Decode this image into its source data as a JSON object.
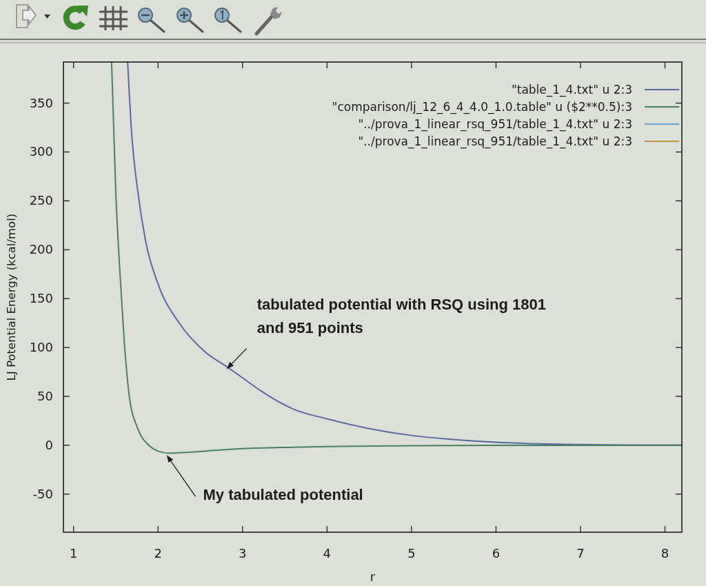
{
  "chart_data": {
    "type": "line",
    "xlabel": "r",
    "ylabel": "LJ Potential Energy (kcal/mol)",
    "xlim": [
      0.88,
      8.2
    ],
    "ylim": [
      -89,
      392
    ],
    "xticks": [
      1,
      2,
      3,
      4,
      5,
      6,
      7,
      8
    ],
    "yticks": [
      -50,
      0,
      50,
      100,
      150,
      200,
      250,
      300,
      350
    ],
    "legend": "top right",
    "series": [
      {
        "name": "\"table_1_4.txt\" u 2:3",
        "color": "#5868a0",
        "x": [
          1.64,
          1.69,
          1.76,
          1.85,
          2.0,
          2.25,
          2.55,
          2.82,
          3.0,
          3.21,
          3.6,
          4.0,
          4.5,
          5.0,
          5.4,
          6.0,
          6.5,
          7.0,
          7.5,
          8.2
        ],
        "values": [
          392,
          316,
          260,
          210,
          165,
          125,
          96,
          80,
          69,
          56,
          37,
          27,
          17,
          10,
          6.5,
          3,
          1.5,
          0.7,
          0.3,
          0
        ]
      },
      {
        "name": "\"comparison/lj_12_6_4_4.0_1.0.table\" u ($2**0.5):3",
        "color": "#4a8060",
        "x": [
          1.45,
          1.5,
          1.55,
          1.6,
          1.66,
          1.76,
          1.89,
          2.0,
          2.12,
          2.4,
          2.7,
          3.0,
          3.6,
          4.0,
          5.0,
          6.0,
          7.0,
          8.2
        ],
        "values": [
          392,
          258,
          175,
          106,
          50,
          17,
          0,
          -6,
          -8,
          -7,
          -5,
          -3.5,
          -2,
          -1.3,
          -0.5,
          -0.2,
          -0.1,
          0
        ]
      },
      {
        "name": "\"../prova_1_linear_rsq_951/table_1_4.txt\" u 2:3",
        "color": "#6aa8cc"
      },
      {
        "name": "\"../prova_1_linear_rsq_951/table_1_4.txt\" u 2:3",
        "color": "#b8953a"
      }
    ],
    "annotations": [
      {
        "text": "tabulated potential with RSQ using 1801 and 951 points",
        "x": 2.82,
        "y": 80
      },
      {
        "text": "My tabulated potential",
        "x": 2.1,
        "y": -8
      }
    ]
  }
}
